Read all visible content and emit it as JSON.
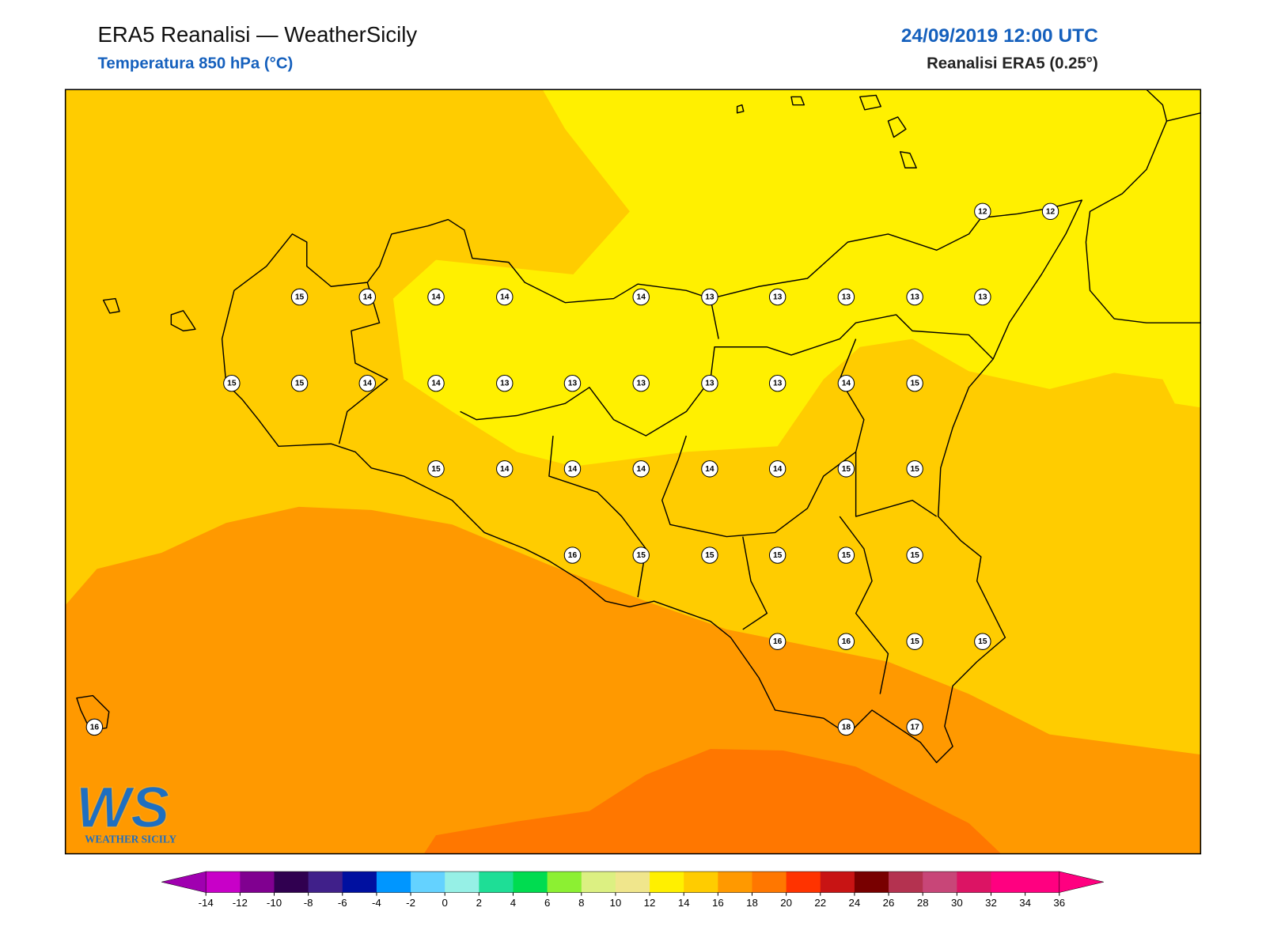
{
  "header": {
    "title": "ERA5 Reanalisi — WeatherSicily",
    "subtitle": "Temperatura 850 hPa (°C)",
    "datetime": "24/09/2019 12:00 UTC",
    "source": "Reanalisi ERA5 (0.25°)"
  },
  "points": [
    12,
    12,
    15,
    14,
    14,
    14,
    14,
    13,
    13,
    13,
    13,
    13,
    15,
    15,
    14,
    14,
    13,
    13,
    13,
    13,
    13,
    14,
    15,
    15,
    14,
    14,
    14,
    14,
    14,
    15,
    15,
    16,
    15,
    15,
    15,
    15,
    15,
    16,
    16,
    15,
    15,
    16,
    18,
    17
  ],
  "colorbar": {
    "ticks": [
      -14,
      -12,
      -10,
      -8,
      -6,
      -4,
      -2,
      0,
      2,
      4,
      6,
      8,
      10,
      12,
      14,
      16,
      18,
      20,
      22,
      24,
      26,
      28,
      30,
      32,
      34,
      36
    ],
    "colors": [
      "#a000b0",
      "#c800c8",
      "#800090",
      "#300050",
      "#40208a",
      "#0010a0",
      "#0096ff",
      "#64d2ff",
      "#96f0e6",
      "#1ede96",
      "#00dc50",
      "#8cf032",
      "#dcf082",
      "#f0e68c",
      "#fff000",
      "#ffcc00",
      "#ff9900",
      "#ff7700",
      "#ff3300",
      "#c81414",
      "#780000",
      "#b43250",
      "#c84678",
      "#dc1464",
      "#ff0080",
      "#ff0080"
    ]
  },
  "logo": {
    "mark": "WS",
    "text": "WEATHER SICILY"
  }
}
